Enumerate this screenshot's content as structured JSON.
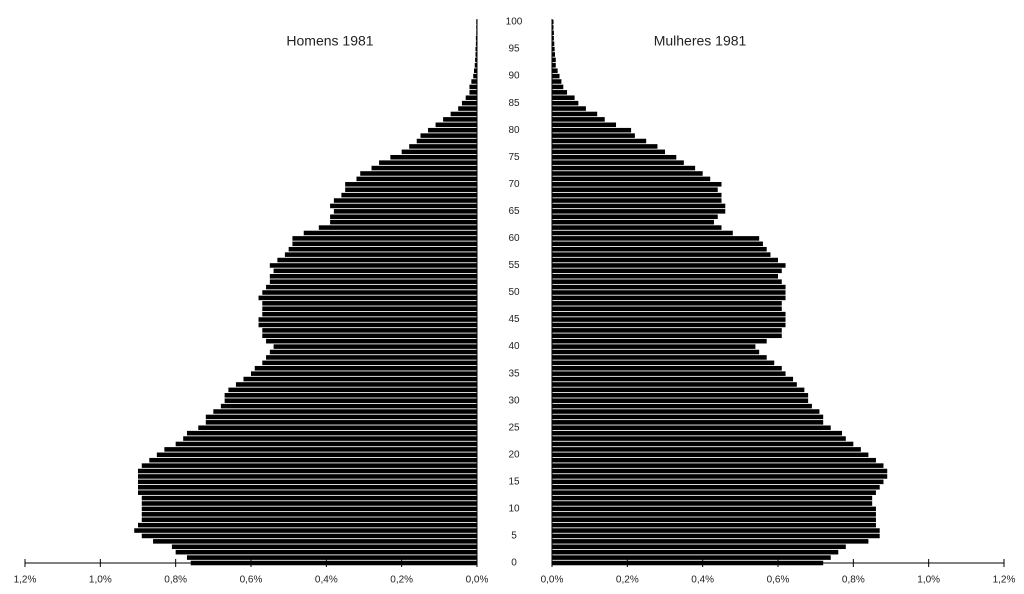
{
  "chart_data": {
    "type": "population_pyramid",
    "categories": [
      0,
      null,
      null,
      null,
      null,
      5,
      null,
      null,
      null,
      null,
      10,
      null,
      null,
      null,
      null,
      15,
      null,
      null,
      null,
      null,
      20,
      null,
      null,
      null,
      null,
      25,
      null,
      null,
      null,
      null,
      30,
      null,
      null,
      null,
      null,
      35,
      null,
      null,
      null,
      null,
      40,
      null,
      null,
      null,
      null,
      45,
      null,
      null,
      null,
      null,
      50,
      null,
      null,
      null,
      null,
      55,
      null,
      null,
      null,
      null,
      60,
      null,
      null,
      null,
      null,
      65,
      null,
      null,
      null,
      null,
      70,
      null,
      null,
      null,
      null,
      75,
      null,
      null,
      null,
      null,
      80,
      null,
      null,
      null,
      null,
      85,
      null,
      null,
      null,
      null,
      90,
      null,
      null,
      null,
      null,
      95,
      null,
      null,
      null,
      null,
      100
    ],
    "series": [
      {
        "name": "Homens 1981",
        "color": "#000000",
        "side": "left",
        "values": [
          0.76,
          0.77,
          0.8,
          0.81,
          0.86,
          0.89,
          0.91,
          0.9,
          0.89,
          0.89,
          0.89,
          0.89,
          0.89,
          0.9,
          0.9,
          0.9,
          0.9,
          0.9,
          0.89,
          0.87,
          0.85,
          0.83,
          0.8,
          0.78,
          0.77,
          0.74,
          0.72,
          0.72,
          0.7,
          0.68,
          0.67,
          0.67,
          0.66,
          0.64,
          0.62,
          0.6,
          0.59,
          0.57,
          0.56,
          0.55,
          0.54,
          0.56,
          0.57,
          0.57,
          0.58,
          0.58,
          0.57,
          0.57,
          0.57,
          0.58,
          0.57,
          0.56,
          0.55,
          0.55,
          0.54,
          0.55,
          0.53,
          0.51,
          0.5,
          0.49,
          0.49,
          0.46,
          0.42,
          0.39,
          0.39,
          0.38,
          0.39,
          0.38,
          0.36,
          0.35,
          0.35,
          0.32,
          0.31,
          0.28,
          0.26,
          0.23,
          0.2,
          0.18,
          0.16,
          0.15,
          0.13,
          0.11,
          0.09,
          0.07,
          0.05,
          0.04,
          0.03,
          0.02,
          0.02,
          0.015,
          0.01,
          0.008,
          0.006,
          0.005,
          0.004,
          0.004,
          0.003,
          0.003,
          0.002,
          0.002,
          0.002
        ]
      },
      {
        "name": "Mulheres 1981",
        "color": "#000000",
        "side": "right",
        "values": [
          0.72,
          0.74,
          0.76,
          0.78,
          0.84,
          0.87,
          0.87,
          0.86,
          0.86,
          0.86,
          0.86,
          0.85,
          0.85,
          0.86,
          0.87,
          0.88,
          0.89,
          0.89,
          0.88,
          0.86,
          0.84,
          0.82,
          0.8,
          0.78,
          0.77,
          0.74,
          0.72,
          0.72,
          0.71,
          0.69,
          0.68,
          0.68,
          0.67,
          0.65,
          0.64,
          0.62,
          0.61,
          0.59,
          0.57,
          0.55,
          0.54,
          0.57,
          0.61,
          0.61,
          0.62,
          0.62,
          0.62,
          0.61,
          0.61,
          0.62,
          0.62,
          0.62,
          0.61,
          0.6,
          0.61,
          0.62,
          0.6,
          0.58,
          0.57,
          0.56,
          0.55,
          0.48,
          0.45,
          0.43,
          0.44,
          0.46,
          0.46,
          0.45,
          0.45,
          0.44,
          0.45,
          0.42,
          0.4,
          0.38,
          0.35,
          0.33,
          0.3,
          0.28,
          0.25,
          0.22,
          0.21,
          0.17,
          0.14,
          0.12,
          0.09,
          0.07,
          0.06,
          0.04,
          0.03,
          0.025,
          0.02,
          0.015,
          0.01,
          0.01,
          0.008,
          0.007,
          0.006,
          0.005,
          0.005,
          0.004,
          0.004
        ]
      }
    ],
    "xlim": [
      0,
      1.2
    ],
    "xticks": [
      {
        "value": 0,
        "label": "0,0%"
      },
      {
        "value": 0.2,
        "label": "0,2%"
      },
      {
        "value": 0.4,
        "label": "0,4%"
      },
      {
        "value": 0.6,
        "label": "0,6%"
      },
      {
        "value": 0.8,
        "label": "0,8%"
      },
      {
        "value": 1.0,
        "label": "1,0%"
      },
      {
        "value": 1.2,
        "label": "1,2%"
      }
    ]
  }
}
